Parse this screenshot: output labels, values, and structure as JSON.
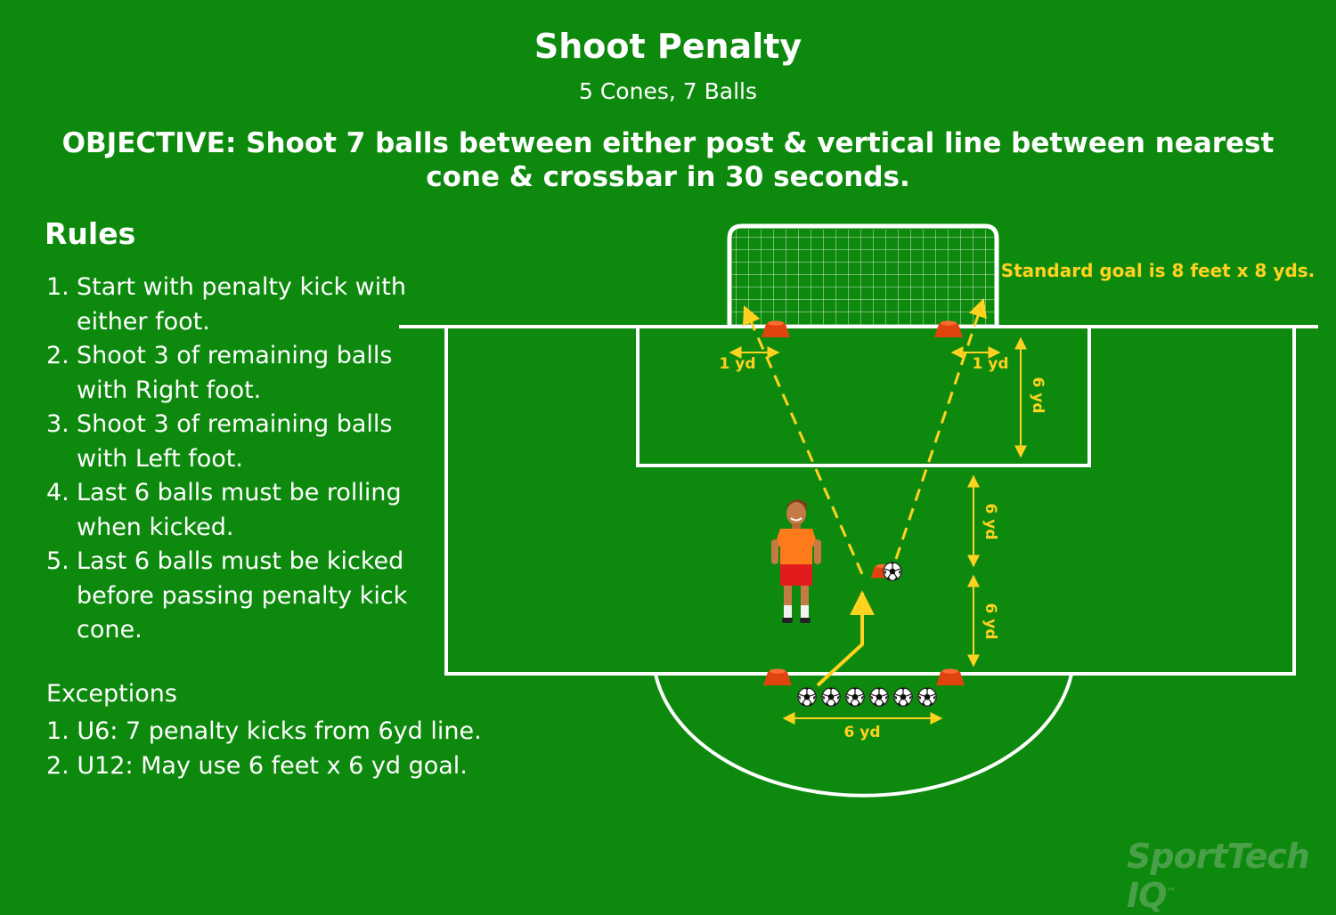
{
  "title": "Shoot Penalty",
  "subtitle": "5 Cones, 7 Balls",
  "objective": "OBJECTIVE: Shoot 7 balls between either post & vertical line between nearest cone & crossbar  in 30 seconds.",
  "rules_heading": "Rules",
  "rules": [
    {
      "num": "1.",
      "text": "Start with penalty kick with either foot."
    },
    {
      "num": "2.",
      "text": "Shoot 3 of remaining balls with Right foot."
    },
    {
      "num": "3.",
      "text": "Shoot 3 of remaining balls with Left foot."
    },
    {
      "num": "4.",
      "text": "Last 6 balls must be rolling when kicked."
    },
    {
      "num": "5.",
      "text": "Last 6 balls must be kicked before passing penalty kick cone."
    }
  ],
  "exceptions_heading": "Exceptions",
  "exceptions": [
    "1. U6: 7 penalty kicks from 6yd line.",
    "2. U12: May use 6 feet x 6 yd goal."
  ],
  "goal_note": "Standard goal is 8 feet x 8 yds.",
  "dimensions": {
    "left_post_gap": "1 yd",
    "right_post_gap": "1 yd",
    "goal_area_depth": "6 yd",
    "upper_spacing": "6 yd",
    "lower_spacing": "6 yd",
    "cone_spacing": "6 yd"
  },
  "logo": {
    "name": "SportTech IQ",
    "mark": "™"
  },
  "colors": {
    "field": "#0d8a0d",
    "lines": "#ffffff",
    "annotation": "#ffd21f",
    "cone": "#e0440e",
    "player_shirt": "#ff7a1a",
    "player_shorts": "#e21c1c"
  },
  "ball_count_row": 6
}
